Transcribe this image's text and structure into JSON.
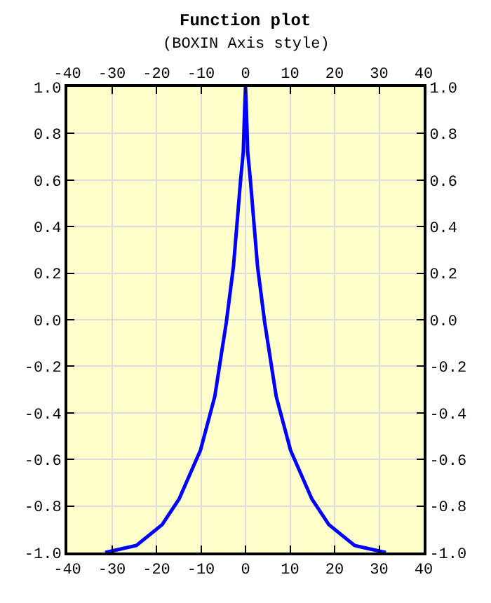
{
  "chart_data": {
    "type": "line",
    "title": "Function plot",
    "subtitle": "(BOXIN Axis style)",
    "series": [
      {
        "color": "#0000ff",
        "x": [
          -31.5,
          -24.5,
          -18.7,
          -14.9,
          -10.1,
          -6.9,
          -4.3,
          -2.7,
          -1.1,
          -0.5,
          -0.2,
          0,
          0.2,
          0.5,
          1.1,
          2.7,
          4.3,
          6.9,
          10.1,
          14.9,
          18.7,
          24.5,
          31.5
        ],
        "values": [
          -1.0,
          -0.97,
          -0.88,
          -0.77,
          -0.56,
          -0.33,
          -0.01,
          0.23,
          0.6,
          0.72,
          0.9,
          1.0,
          0.9,
          0.72,
          0.6,
          0.23,
          -0.01,
          -0.33,
          -0.56,
          -0.77,
          -0.88,
          -0.97,
          -1.0
        ]
      }
    ],
    "xlim": [
      -40,
      40
    ],
    "xticks": [
      -40,
      -30,
      -20,
      -10,
      0,
      10,
      20,
      30,
      40
    ],
    "x2lim": [
      -40,
      40
    ],
    "x2ticks": [
      -40,
      -30,
      -20,
      -10,
      0,
      10,
      20,
      30,
      40
    ],
    "ylim": [
      -1.0,
      1.0
    ],
    "yticks": [
      {
        "value": -1,
        "label": "-1.0"
      },
      {
        "value": -0.8,
        "label": "-0.8"
      },
      {
        "value": -0.6,
        "label": "-0.6"
      },
      {
        "value": -0.4,
        "label": "-0.4"
      },
      {
        "value": -0.2,
        "label": "-0.2"
      },
      {
        "value": 0,
        "label": "0.0"
      },
      {
        "value": 0.2,
        "label": "0.2"
      },
      {
        "value": 0.4,
        "label": "0.4"
      },
      {
        "value": 0.6,
        "label": "0.6"
      },
      {
        "value": 0.8,
        "label": "0.8"
      },
      {
        "value": 1,
        "label": "1.0"
      }
    ],
    "y2lim": [
      -1.0,
      1.0
    ],
    "y2ticks": [
      {
        "value": -1,
        "label": "-1.0"
      },
      {
        "value": -0.8,
        "label": "-0.8"
      },
      {
        "value": -0.6,
        "label": "-0.6"
      },
      {
        "value": -0.4,
        "label": "-0.4"
      },
      {
        "value": -0.2,
        "label": "-0.2"
      },
      {
        "value": 0,
        "label": "0.0"
      },
      {
        "value": 0.2,
        "label": "0.2"
      },
      {
        "value": 0.4,
        "label": "0.4"
      },
      {
        "value": 0.6,
        "label": "0.6"
      },
      {
        "value": 0.8,
        "label": "0.8"
      },
      {
        "value": 1,
        "label": "1.0"
      }
    ],
    "grid": true,
    "marker": "none",
    "line_style": "solid"
  }
}
